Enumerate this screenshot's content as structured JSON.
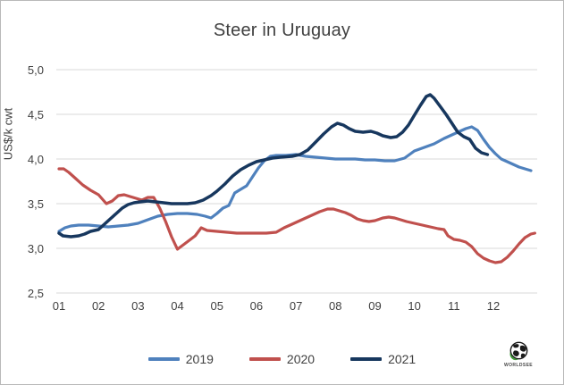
{
  "colors": {
    "gridline": "#d9d9d9",
    "axis_text": "#404040",
    "title_text": "#404040",
    "figure_border": "#b9b9b9",
    "background": "#ffffff",
    "logo_green": "#3d9b35",
    "logo_dark": "#1a1a1a"
  },
  "logo": {
    "text": "WORLDSEE",
    "icon": "globe-icon"
  },
  "chart_data": {
    "type": "line",
    "title": "Steer in Uruguay",
    "xlabel": "",
    "ylabel": "US$/k cwt",
    "grid": true,
    "legend_position": "bottom",
    "x_axis": {
      "tick_labels": [
        "01",
        "02",
        "03",
        "04",
        "05",
        "06",
        "07",
        "08",
        "09",
        "10",
        "11",
        "12"
      ],
      "tick_values": [
        1,
        2,
        3,
        4,
        5,
        6,
        7,
        8,
        9,
        10,
        11,
        12
      ],
      "range": [
        0.95,
        13.1
      ],
      "unit": "month (weekly data)"
    },
    "y_axis": {
      "tick_labels": [
        "5,0",
        "4,5",
        "4,0",
        "3,5",
        "3,0",
        "2,5"
      ],
      "tick_values": [
        5.0,
        4.5,
        4.0,
        3.5,
        3.0,
        2.5
      ],
      "range": [
        2.5,
        5.0
      ],
      "unit": "US$/k cwt"
    },
    "series": [
      {
        "name": "2019",
        "color": "#4f81bd",
        "points": [
          [
            1.0,
            3.19
          ],
          [
            1.15,
            3.23
          ],
          [
            1.3,
            3.25
          ],
          [
            1.5,
            3.26
          ],
          [
            1.75,
            3.26
          ],
          [
            2.0,
            3.25
          ],
          [
            2.25,
            3.24
          ],
          [
            2.5,
            3.25
          ],
          [
            2.75,
            3.26
          ],
          [
            3.0,
            3.28
          ],
          [
            3.25,
            3.32
          ],
          [
            3.5,
            3.36
          ],
          [
            3.75,
            3.38
          ],
          [
            4.0,
            3.39
          ],
          [
            4.25,
            3.39
          ],
          [
            4.5,
            3.38
          ],
          [
            4.7,
            3.36
          ],
          [
            4.85,
            3.34
          ],
          [
            5.0,
            3.39
          ],
          [
            5.15,
            3.45
          ],
          [
            5.3,
            3.48
          ],
          [
            5.45,
            3.62
          ],
          [
            5.6,
            3.66
          ],
          [
            5.75,
            3.7
          ],
          [
            5.9,
            3.8
          ],
          [
            6.05,
            3.9
          ],
          [
            6.2,
            3.98
          ],
          [
            6.35,
            4.03
          ],
          [
            6.5,
            4.04
          ],
          [
            6.75,
            4.04
          ],
          [
            7.0,
            4.05
          ],
          [
            7.25,
            4.03
          ],
          [
            7.5,
            4.02
          ],
          [
            7.75,
            4.01
          ],
          [
            8.0,
            4.0
          ],
          [
            8.25,
            4.0
          ],
          [
            8.5,
            4.0
          ],
          [
            8.75,
            3.99
          ],
          [
            9.0,
            3.99
          ],
          [
            9.25,
            3.98
          ],
          [
            9.5,
            3.98
          ],
          [
            9.75,
            4.01
          ],
          [
            10.0,
            4.09
          ],
          [
            10.25,
            4.13
          ],
          [
            10.5,
            4.17
          ],
          [
            10.75,
            4.23
          ],
          [
            11.0,
            4.28
          ],
          [
            11.15,
            4.31
          ],
          [
            11.3,
            4.34
          ],
          [
            11.45,
            4.36
          ],
          [
            11.6,
            4.32
          ],
          [
            11.75,
            4.22
          ],
          [
            11.9,
            4.13
          ],
          [
            12.05,
            4.06
          ],
          [
            12.2,
            4.0
          ],
          [
            12.35,
            3.97
          ],
          [
            12.5,
            3.94
          ],
          [
            12.65,
            3.91
          ],
          [
            12.8,
            3.89
          ],
          [
            12.95,
            3.87
          ]
        ]
      },
      {
        "name": "2020",
        "color": "#c0504d",
        "points": [
          [
            1.0,
            3.89
          ],
          [
            1.12,
            3.89
          ],
          [
            1.25,
            3.85
          ],
          [
            1.4,
            3.79
          ],
          [
            1.6,
            3.71
          ],
          [
            1.8,
            3.65
          ],
          [
            2.0,
            3.6
          ],
          [
            2.1,
            3.55
          ],
          [
            2.2,
            3.5
          ],
          [
            2.35,
            3.53
          ],
          [
            2.5,
            3.59
          ],
          [
            2.65,
            3.6
          ],
          [
            2.8,
            3.58
          ],
          [
            2.95,
            3.56
          ],
          [
            3.1,
            3.54
          ],
          [
            3.25,
            3.57
          ],
          [
            3.4,
            3.57
          ],
          [
            3.55,
            3.45
          ],
          [
            3.7,
            3.3
          ],
          [
            3.85,
            3.13
          ],
          [
            4.0,
            2.99
          ],
          [
            4.15,
            3.04
          ],
          [
            4.3,
            3.09
          ],
          [
            4.45,
            3.14
          ],
          [
            4.6,
            3.23
          ],
          [
            4.75,
            3.2
          ],
          [
            5.0,
            3.19
          ],
          [
            5.25,
            3.18
          ],
          [
            5.5,
            3.17
          ],
          [
            5.75,
            3.17
          ],
          [
            6.0,
            3.17
          ],
          [
            6.25,
            3.17
          ],
          [
            6.5,
            3.18
          ],
          [
            6.7,
            3.23
          ],
          [
            6.85,
            3.26
          ],
          [
            7.0,
            3.29
          ],
          [
            7.2,
            3.33
          ],
          [
            7.4,
            3.37
          ],
          [
            7.6,
            3.41
          ],
          [
            7.8,
            3.44
          ],
          [
            7.95,
            3.44
          ],
          [
            8.1,
            3.42
          ],
          [
            8.25,
            3.4
          ],
          [
            8.4,
            3.37
          ],
          [
            8.55,
            3.33
          ],
          [
            8.7,
            3.31
          ],
          [
            8.85,
            3.3
          ],
          [
            9.0,
            3.31
          ],
          [
            9.2,
            3.34
          ],
          [
            9.35,
            3.35
          ],
          [
            9.5,
            3.34
          ],
          [
            9.65,
            3.32
          ],
          [
            9.8,
            3.3
          ],
          [
            10.0,
            3.28
          ],
          [
            10.2,
            3.26
          ],
          [
            10.4,
            3.24
          ],
          [
            10.6,
            3.22
          ],
          [
            10.75,
            3.21
          ],
          [
            10.85,
            3.14
          ],
          [
            11.0,
            3.1
          ],
          [
            11.15,
            3.09
          ],
          [
            11.3,
            3.07
          ],
          [
            11.45,
            3.02
          ],
          [
            11.6,
            2.94
          ],
          [
            11.75,
            2.89
          ],
          [
            11.9,
            2.86
          ],
          [
            12.05,
            2.84
          ],
          [
            12.2,
            2.85
          ],
          [
            12.35,
            2.9
          ],
          [
            12.5,
            2.97
          ],
          [
            12.65,
            3.05
          ],
          [
            12.8,
            3.12
          ],
          [
            12.95,
            3.16
          ],
          [
            13.05,
            3.17
          ]
        ]
      },
      {
        "name": "2021",
        "color": "#17375e",
        "points": [
          [
            1.0,
            3.17
          ],
          [
            1.1,
            3.14
          ],
          [
            1.3,
            3.13
          ],
          [
            1.5,
            3.14
          ],
          [
            1.65,
            3.16
          ],
          [
            1.8,
            3.19
          ],
          [
            2.0,
            3.21
          ],
          [
            2.15,
            3.27
          ],
          [
            2.3,
            3.33
          ],
          [
            2.45,
            3.39
          ],
          [
            2.6,
            3.45
          ],
          [
            2.75,
            3.49
          ],
          [
            2.9,
            3.51
          ],
          [
            3.05,
            3.52
          ],
          [
            3.25,
            3.53
          ],
          [
            3.45,
            3.52
          ],
          [
            3.65,
            3.51
          ],
          [
            3.85,
            3.5
          ],
          [
            4.05,
            3.5
          ],
          [
            4.25,
            3.5
          ],
          [
            4.45,
            3.51
          ],
          [
            4.65,
            3.54
          ],
          [
            4.85,
            3.59
          ],
          [
            5.0,
            3.64
          ],
          [
            5.2,
            3.72
          ],
          [
            5.4,
            3.81
          ],
          [
            5.6,
            3.88
          ],
          [
            5.8,
            3.93
          ],
          [
            6.0,
            3.97
          ],
          [
            6.2,
            3.99
          ],
          [
            6.4,
            4.01
          ],
          [
            6.6,
            4.02
          ],
          [
            6.9,
            4.03
          ],
          [
            7.1,
            4.05
          ],
          [
            7.3,
            4.1
          ],
          [
            7.5,
            4.19
          ],
          [
            7.7,
            4.28
          ],
          [
            7.9,
            4.36
          ],
          [
            8.05,
            4.4
          ],
          [
            8.2,
            4.38
          ],
          [
            8.35,
            4.34
          ],
          [
            8.5,
            4.31
          ],
          [
            8.7,
            4.3
          ],
          [
            8.9,
            4.31
          ],
          [
            9.05,
            4.29
          ],
          [
            9.2,
            4.26
          ],
          [
            9.4,
            4.24
          ],
          [
            9.55,
            4.25
          ],
          [
            9.7,
            4.3
          ],
          [
            9.85,
            4.38
          ],
          [
            10.0,
            4.49
          ],
          [
            10.15,
            4.6
          ],
          [
            10.3,
            4.7
          ],
          [
            10.4,
            4.72
          ],
          [
            10.5,
            4.68
          ],
          [
            10.65,
            4.59
          ],
          [
            10.8,
            4.5
          ],
          [
            10.95,
            4.4
          ],
          [
            11.1,
            4.3
          ],
          [
            11.25,
            4.25
          ],
          [
            11.4,
            4.22
          ],
          [
            11.55,
            4.12
          ],
          [
            11.7,
            4.07
          ],
          [
            11.85,
            4.05
          ]
        ]
      }
    ]
  }
}
